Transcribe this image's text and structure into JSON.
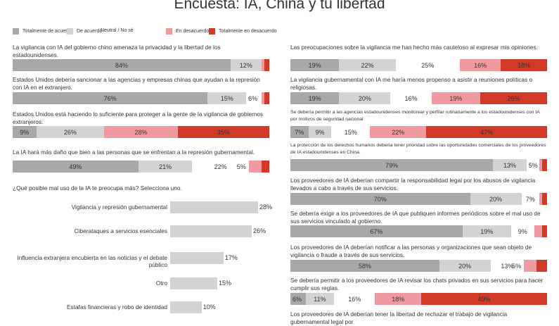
{
  "title": "Encuesta: IA, China y tu libertad",
  "legend": [
    {
      "label": "Totalmente de acuerdo",
      "color": "#a8a8a8"
    },
    {
      "label": "De acuerdo",
      "color": "#d3d3d3"
    },
    {
      "label": "Neutral / No sé",
      "color": "#ffffff"
    },
    {
      "label": "En desacuerdo",
      "color": "#ef9aa0"
    },
    {
      "label": "Totalmente en desacuerdo",
      "color": "#d13a27"
    }
  ],
  "chart_data": [
    {
      "type": "bar",
      "stacked": true,
      "orientation": "horizontal",
      "series_order": [
        "Totalmente de acuerdo",
        "De acuerdo",
        "Neutral / No sé",
        "En desacuerdo",
        "Totalmente en desacuerdo"
      ],
      "items": [
        {
          "question": "La vigilancia con IA del gobierno chino amenaza la privacidad y la libertad de los estadounidenses.",
          "values": [
            84,
            12,
            0,
            1,
            2
          ],
          "labels": [
            "84%",
            "12%",
            "",
            "",
            ""
          ]
        },
        {
          "question": "Estados Unidos debería sancionar a las agencias y empresas chinas que ayudan a la represión con IA en el extranjero.",
          "values": [
            76,
            15,
            6,
            1,
            2
          ],
          "labels": [
            "76%",
            "15%",
            "6%",
            "",
            ""
          ]
        },
        {
          "question": "Estados Unidos está haciendo lo suficiente para proteger a la gente de la vigilancia de gobiernos extranjeros.",
          "values": [
            9,
            26,
            0,
            28,
            35
          ],
          "labels": [
            "9%",
            "26%",
            "",
            "28%",
            "35%"
          ]
        },
        {
          "question": "La IA hará más daño que bien a las personas que se enfrentan a la represión gubernamental.",
          "values": [
            49,
            21,
            22,
            5,
            3
          ],
          "labels": [
            "49%",
            "21%",
            "22%",
            "5%",
            ""
          ]
        },
        {
          "question": "Las preocupaciones sobre la vigilancia me han hecho más cauteloso al expresar mis opiniones.",
          "values": [
            19,
            22,
            25,
            16,
            18
          ],
          "labels": [
            "19%",
            "22%",
            "25%",
            "16%",
            "18%"
          ]
        },
        {
          "question": "La vigilancia gubernamental con IA me haría menos propenso a asistir a reuniones políticas o religiosas.",
          "values": [
            19,
            20,
            16,
            19,
            26
          ],
          "labels": [
            "19%",
            "20%",
            "16%",
            "19%",
            "26%"
          ]
        },
        {
          "question": "Se debería permitir a las agencias estadounidenses monitorear y perfilar rutinariamente a los estadounidenses con IA por motivos de seguridad nacional",
          "values": [
            7,
            9,
            15,
            22,
            47
          ],
          "labels": [
            "7%",
            "9%",
            "15%",
            "22%",
            "47%"
          ]
        },
        {
          "question": "La protección de los derechos humanos debería tener prioridad sobre las oportunidades comerciales de los proveedores de IA estadounidenses en China.",
          "values": [
            79,
            13,
            5,
            1,
            2
          ],
          "labels": [
            "79%",
            "13%",
            "5%",
            "",
            ""
          ]
        },
        {
          "question": "Los proveedores de IA deberían compartir la responsabilidad legal por los abusos de vigilancia llevados a cabo a través de sus servicios.",
          "values": [
            70,
            20,
            7,
            1,
            2
          ],
          "labels": [
            "70%",
            "20%",
            "7%",
            "",
            ""
          ]
        },
        {
          "question": "Se debería exigir a los proveedores de IA que publiquen informes periódicos sobre el mal uso de sus servicios vinculado al gobierno.",
          "values": [
            67,
            19,
            9,
            3,
            2
          ],
          "labels": [
            "67%",
            "19%",
            "9%",
            "",
            ""
          ]
        },
        {
          "question": "Los proveedores de IA deberían notificar a las personas y organizaciones que sean objeto de vigilancia o fraude a través de sus servicios.",
          "values": [
            58,
            20,
            13,
            5,
            4
          ],
          "labels": [
            "58%",
            "20%",
            "13%",
            "5%",
            ""
          ]
        },
        {
          "question": "Se debería permitir a los proveedores de IA revisar los chats privados en sus servicios para hacer cumplir sus reglas.",
          "values": [
            6,
            11,
            16,
            18,
            49
          ],
          "labels": [
            "6%",
            "11%",
            "16%",
            "18%",
            "49%"
          ]
        },
        {
          "question": "Los proveedores de IA deberían tener la libertad de rechazar el trabajo de vigilancia gubernamental legal por",
          "values": [],
          "labels": []
        }
      ]
    },
    {
      "type": "bar",
      "orientation": "horizontal",
      "title": "¿Qué posible mal uso de la IA te preocupa más? Selecciona uno.",
      "categories": [
        "Vigilancia y represión gubernamental",
        "Ciberataques a servicios esenciales",
        "Influencia extranjera encubierta en las noticias y el debate público",
        "Otro",
        "Estafas financieras y robo de identidad"
      ],
      "values": [
        28,
        26,
        17,
        15,
        10
      ],
      "labels": [
        "28%",
        "26%",
        "17%",
        "15%",
        "10%"
      ]
    }
  ]
}
